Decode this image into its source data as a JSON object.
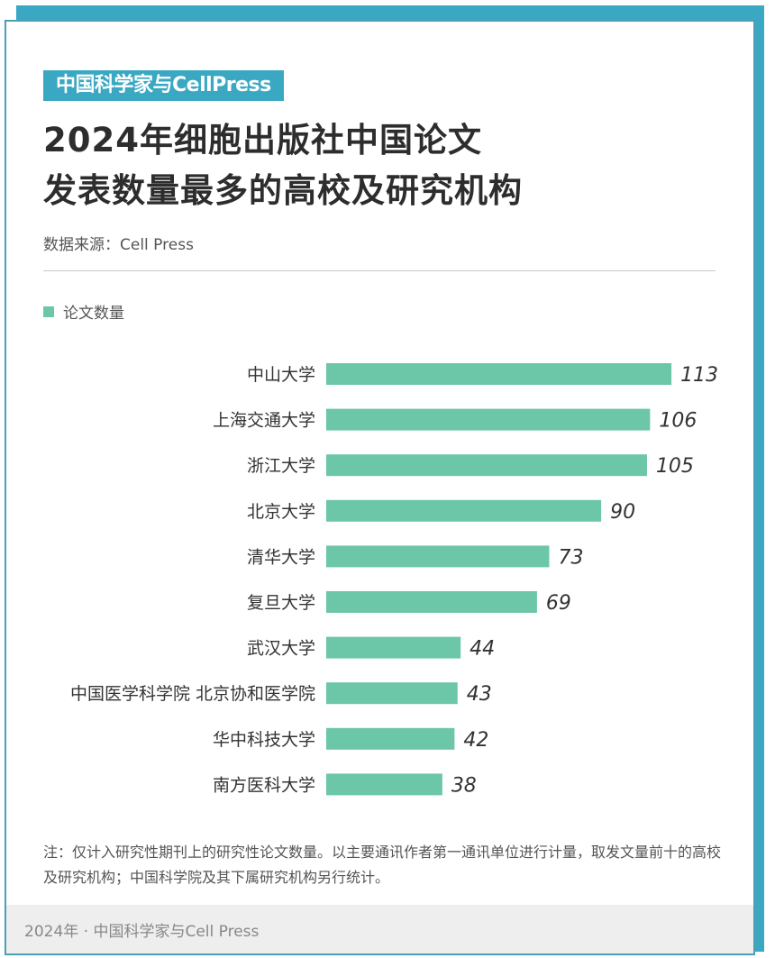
{
  "brand": {
    "tag": "中国科学家与CellPress"
  },
  "header": {
    "title_line1": "2024年细胞出版社中国论文",
    "title_line2": "发表数量最多的高校及研究机构",
    "source": "数据来源：Cell Press"
  },
  "legend": {
    "label": "论文数量",
    "color": "#6cc6a8"
  },
  "chart_data": {
    "type": "bar",
    "orientation": "horizontal",
    "categories": [
      "中山大学",
      "上海交通大学",
      "浙江大学",
      "北京大学",
      "清华大学",
      "复旦大学",
      "武汉大学",
      "中国医学科学院 北京协和医学院",
      "华中科技大学",
      "南方医科大学"
    ],
    "series": [
      {
        "name": "论文数量",
        "values": [
          113,
          106,
          105,
          90,
          73,
          69,
          44,
          43,
          42,
          38
        ],
        "color": "#6cc6a8"
      }
    ],
    "legend_position": "top-left",
    "grid": false
  },
  "note": "注：仅计入研究性期刊上的研究性论文数量。以主要通讯作者第一通讯单位进行计量，取发文量前十的高校及研究机构；中国科学院及其下属研究机构另行统计。",
  "footer": {
    "text": "2024年 · 中国科学家与Cell Press"
  }
}
